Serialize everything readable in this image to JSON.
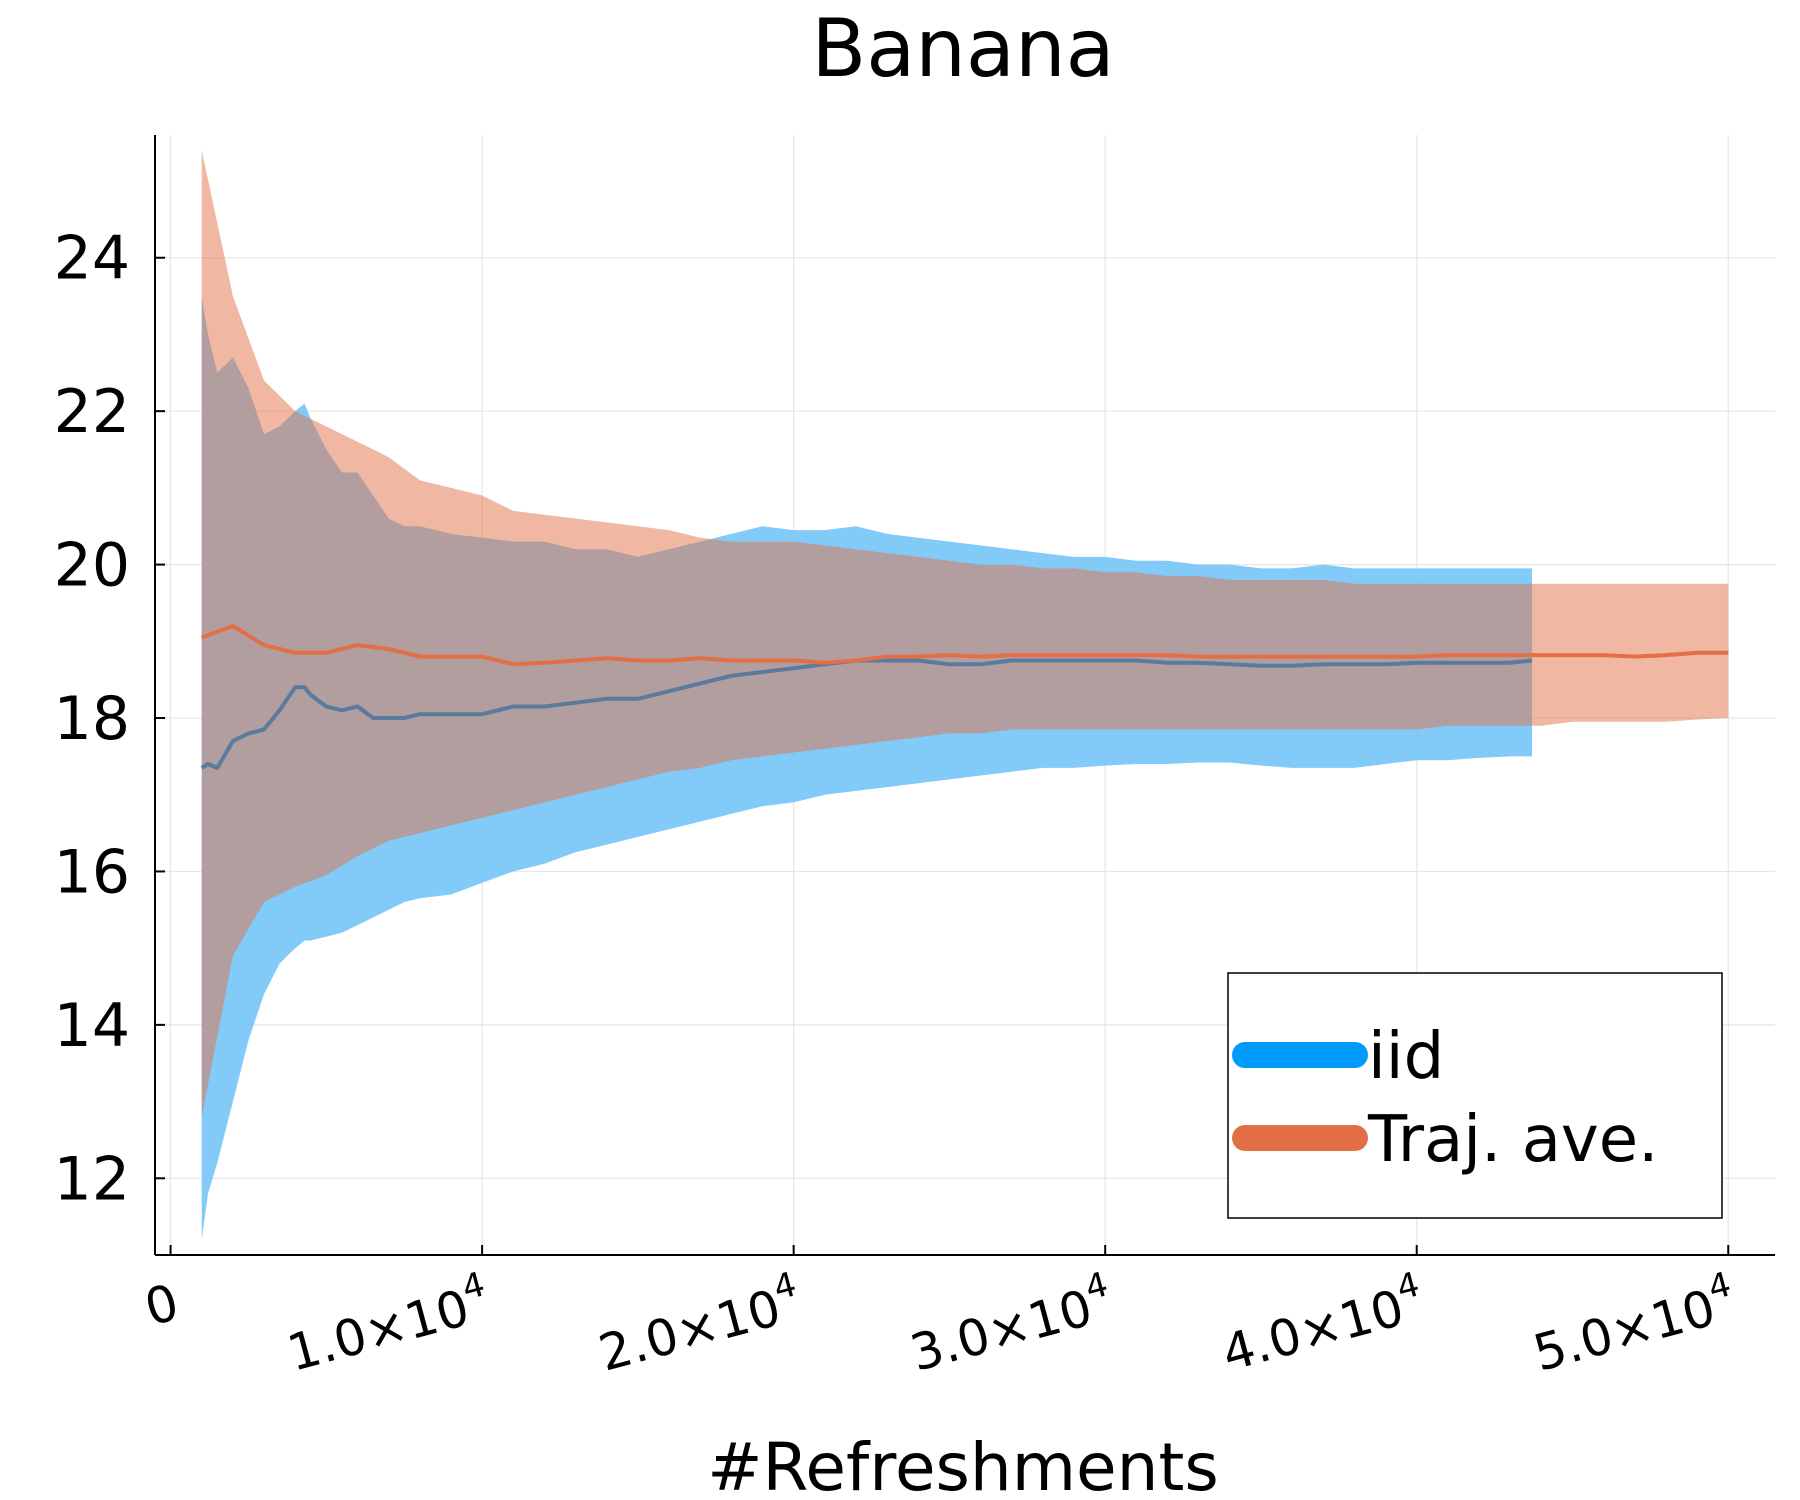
{
  "chart_data": {
    "type": "line",
    "title": "Banana",
    "xlabel": "#Refreshments",
    "ylabel": "",
    "xlim": [
      -500,
      51500
    ],
    "ylim": [
      11.0,
      25.6
    ],
    "grid": true,
    "legend_position": "bottom-right",
    "x_ticks": [
      {
        "value": 0,
        "mantissa": "0",
        "exp": ""
      },
      {
        "value": 10000,
        "mantissa": "1.0×10",
        "exp": "4"
      },
      {
        "value": 20000,
        "mantissa": "2.0×10",
        "exp": "4"
      },
      {
        "value": 30000,
        "mantissa": "3.0×10",
        "exp": "4"
      },
      {
        "value": 40000,
        "mantissa": "4.0×10",
        "exp": "4"
      },
      {
        "value": 50000,
        "mantissa": "5.0×10",
        "exp": "4"
      }
    ],
    "y_ticks": [
      12,
      14,
      16,
      18,
      20,
      22,
      24
    ],
    "series": [
      {
        "name": "iid",
        "color": "#009AFA",
        "band_color": "#7BC8F8",
        "band_opacity": 0.95,
        "x": [
          1000,
          1200,
          1500,
          2000,
          2500,
          3000,
          3500,
          4000,
          4300,
          4500,
          5000,
          5500,
          6000,
          6500,
          7000,
          7500,
          8000,
          9000,
          10000,
          11000,
          12000,
          13000,
          14000,
          15000,
          16000,
          17000,
          18000,
          19000,
          20000,
          21000,
          22000,
          23000,
          24000,
          25000,
          26000,
          27000,
          28000,
          29000,
          30000,
          31000,
          32000,
          33000,
          34000,
          35000,
          36000,
          37000,
          38000,
          39000,
          40000,
          41000,
          42000,
          43000,
          43700
        ],
        "mean": [
          17.35,
          17.4,
          17.35,
          17.7,
          17.8,
          17.85,
          18.1,
          18.4,
          18.4,
          18.3,
          18.15,
          18.1,
          18.15,
          18.0,
          18.0,
          18.0,
          18.05,
          18.05,
          18.05,
          18.15,
          18.15,
          18.2,
          18.25,
          18.25,
          18.35,
          18.45,
          18.55,
          18.6,
          18.65,
          18.7,
          18.75,
          18.75,
          18.75,
          18.7,
          18.7,
          18.75,
          18.75,
          18.75,
          18.75,
          18.75,
          18.72,
          18.72,
          18.7,
          18.68,
          18.68,
          18.7,
          18.7,
          18.7,
          18.72,
          18.72,
          18.72,
          18.72,
          18.75
        ],
        "upper": [
          23.5,
          23.0,
          22.5,
          22.7,
          22.3,
          21.7,
          21.8,
          22.0,
          22.1,
          21.9,
          21.5,
          21.2,
          21.2,
          20.9,
          20.6,
          20.5,
          20.5,
          20.4,
          20.35,
          20.3,
          20.3,
          20.2,
          20.2,
          20.1,
          20.2,
          20.3,
          20.4,
          20.5,
          20.45,
          20.45,
          20.5,
          20.4,
          20.35,
          20.3,
          20.25,
          20.2,
          20.15,
          20.1,
          20.1,
          20.05,
          20.05,
          20.0,
          20.0,
          19.95,
          19.95,
          20.0,
          19.95,
          19.95,
          19.95,
          19.95,
          19.95,
          19.95,
          19.95
        ],
        "lower": [
          11.2,
          11.8,
          12.2,
          13.0,
          13.8,
          14.4,
          14.8,
          15.0,
          15.1,
          15.1,
          15.15,
          15.2,
          15.3,
          15.4,
          15.5,
          15.6,
          15.65,
          15.7,
          15.85,
          16.0,
          16.1,
          16.25,
          16.35,
          16.45,
          16.55,
          16.65,
          16.75,
          16.85,
          16.9,
          17.0,
          17.05,
          17.1,
          17.15,
          17.2,
          17.25,
          17.3,
          17.35,
          17.35,
          17.38,
          17.4,
          17.4,
          17.42,
          17.42,
          17.38,
          17.35,
          17.35,
          17.35,
          17.4,
          17.45,
          17.45,
          17.48,
          17.5,
          17.5
        ]
      },
      {
        "name": "Traj. ave.",
        "color": "#E26F46",
        "band_color": "#E26F46",
        "band_opacity": 0.5,
        "x": [
          1000,
          2000,
          3000,
          4000,
          5000,
          6000,
          7000,
          8000,
          9000,
          10000,
          11000,
          12000,
          13000,
          14000,
          15000,
          16000,
          17000,
          18000,
          19000,
          20000,
          21000,
          22000,
          23000,
          24000,
          25000,
          26000,
          27000,
          28000,
          29000,
          30000,
          31000,
          32000,
          33000,
          34000,
          35000,
          36000,
          37000,
          38000,
          39000,
          40000,
          41000,
          42000,
          43000,
          44000,
          45000,
          46000,
          47000,
          48000,
          49000,
          50000
        ],
        "mean": [
          19.05,
          19.2,
          18.95,
          18.85,
          18.85,
          18.95,
          18.9,
          18.8,
          18.8,
          18.8,
          18.7,
          18.72,
          18.75,
          18.78,
          18.75,
          18.75,
          18.78,
          18.75,
          18.75,
          18.75,
          18.72,
          18.75,
          18.8,
          18.8,
          18.82,
          18.8,
          18.82,
          18.82,
          18.82,
          18.82,
          18.82,
          18.82,
          18.8,
          18.8,
          18.8,
          18.8,
          18.8,
          18.8,
          18.8,
          18.8,
          18.82,
          18.82,
          18.82,
          18.82,
          18.82,
          18.82,
          18.8,
          18.82,
          18.85,
          18.85
        ],
        "upper": [
          25.4,
          23.5,
          22.4,
          22.0,
          21.8,
          21.6,
          21.4,
          21.1,
          21.0,
          20.9,
          20.7,
          20.65,
          20.6,
          20.55,
          20.5,
          20.45,
          20.35,
          20.3,
          20.3,
          20.3,
          20.25,
          20.2,
          20.15,
          20.1,
          20.05,
          20.0,
          20.0,
          19.95,
          19.95,
          19.9,
          19.9,
          19.85,
          19.85,
          19.8,
          19.8,
          19.8,
          19.8,
          19.75,
          19.75,
          19.75,
          19.75,
          19.75,
          19.75,
          19.75,
          19.75,
          19.75,
          19.75,
          19.75,
          19.75,
          19.75
        ],
        "lower": [
          12.8,
          14.9,
          15.6,
          15.8,
          15.95,
          16.2,
          16.4,
          16.5,
          16.6,
          16.7,
          16.8,
          16.9,
          17.0,
          17.1,
          17.2,
          17.3,
          17.35,
          17.45,
          17.5,
          17.55,
          17.6,
          17.65,
          17.7,
          17.75,
          17.8,
          17.8,
          17.85,
          17.85,
          17.85,
          17.85,
          17.85,
          17.85,
          17.85,
          17.85,
          17.85,
          17.85,
          17.85,
          17.85,
          17.85,
          17.85,
          17.9,
          17.9,
          17.9,
          17.9,
          17.95,
          17.95,
          17.95,
          17.95,
          17.98,
          18.0
        ]
      }
    ]
  }
}
